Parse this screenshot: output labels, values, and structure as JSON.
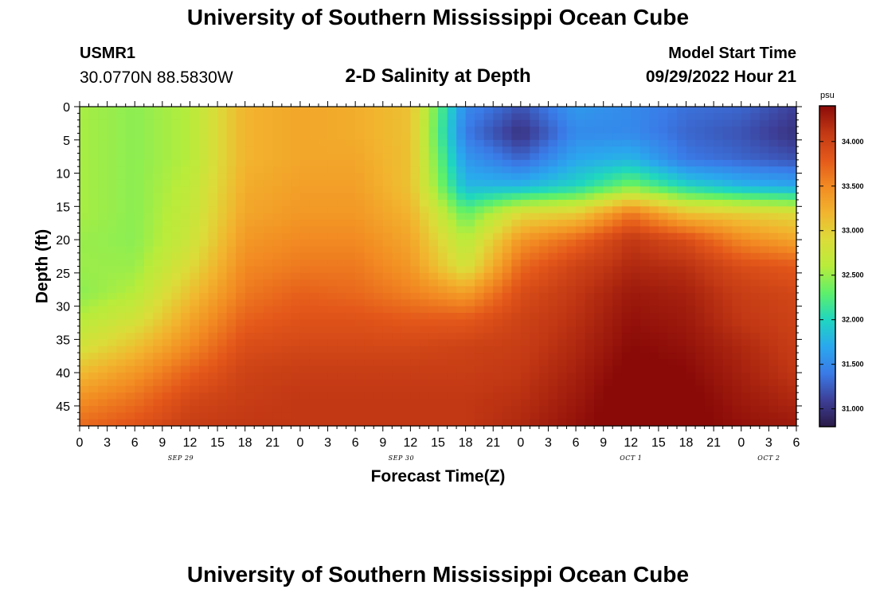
{
  "header": {
    "title": "University of Southern Mississippi Ocean Cube",
    "station_id": "USMR1",
    "coordinates": "30.0770N  88.5830W",
    "subtitle": "2-D Salinity at Depth",
    "model_start_label": "Model Start Time",
    "model_start_value": "09/29/2022 Hour 21"
  },
  "footer": {
    "title": "University of Southern Mississippi Ocean Cube"
  },
  "colors": {
    "scale": [
      "#2a1a46",
      "#3d3f98",
      "#3a7be8",
      "#2aa8ee",
      "#1fd6c0",
      "#5ef06a",
      "#b8ec3b",
      "#dcdc3a",
      "#f2b42e",
      "#f28a22",
      "#e4581a",
      "#c23814",
      "#8a0a08"
    ]
  },
  "chart_data": {
    "type": "heatmap",
    "title": "2-D Salinity at Depth",
    "xlabel": "Forecast Time(Z)",
    "ylabel": "Depth (ft)",
    "x_range": [
      0,
      78
    ],
    "x_unit": "hours from 09/29 00Z",
    "x_tick_labels": [
      "0",
      "3",
      "6",
      "9",
      "12",
      "15",
      "18",
      "21",
      "0",
      "3",
      "6",
      "9",
      "12",
      "15",
      "18",
      "21",
      "0",
      "3",
      "6",
      "9",
      "12",
      "15",
      "18",
      "21",
      "0",
      "3",
      "6"
    ],
    "date_labels": [
      {
        "label": "SEP 29",
        "hour": 11
      },
      {
        "label": "SEP 30",
        "hour": 35
      },
      {
        "label": "OCT 1",
        "hour": 60
      },
      {
        "label": "OCT 2",
        "hour": 75
      }
    ],
    "y_range": [
      0,
      48
    ],
    "y_ticks": [
      0,
      5,
      10,
      15,
      20,
      25,
      30,
      35,
      40,
      45
    ],
    "colorbar": {
      "label": "psu",
      "range": [
        30.8,
        34.4
      ],
      "ticks": [
        "31.000",
        "31.500",
        "32.000",
        "32.500",
        "33.000",
        "33.500",
        "34.000"
      ]
    },
    "depths": [
      0,
      4,
      8,
      12,
      16,
      20,
      24,
      28,
      32,
      36,
      40,
      44,
      48
    ],
    "hours": [
      0,
      6,
      12,
      18,
      24,
      30,
      36,
      42,
      48,
      54,
      60,
      66,
      72,
      78
    ],
    "values": [
      [
        32.55,
        32.45,
        32.6,
        33.2,
        33.3,
        33.25,
        33.1,
        31.5,
        31.2,
        31.6,
        31.5,
        31.35,
        31.3,
        31.1
      ],
      [
        32.55,
        32.45,
        32.6,
        33.2,
        33.3,
        33.25,
        33.1,
        31.4,
        31.0,
        31.5,
        31.5,
        31.3,
        31.2,
        31.0
      ],
      [
        32.55,
        32.45,
        32.6,
        33.2,
        33.3,
        33.3,
        33.1,
        31.6,
        31.3,
        31.7,
        31.8,
        31.4,
        31.3,
        31.2
      ],
      [
        32.55,
        32.45,
        32.65,
        33.25,
        33.35,
        33.35,
        33.1,
        31.8,
        31.8,
        32.0,
        32.4,
        32.0,
        31.8,
        31.7
      ],
      [
        32.55,
        32.45,
        32.7,
        33.3,
        33.4,
        33.4,
        33.2,
        32.3,
        32.9,
        33.0,
        33.6,
        33.1,
        33.0,
        32.9
      ],
      [
        32.5,
        32.45,
        32.75,
        33.4,
        33.5,
        33.5,
        33.3,
        32.6,
        33.4,
        33.7,
        34.1,
        33.9,
        33.5,
        33.3
      ],
      [
        32.5,
        32.5,
        32.9,
        33.5,
        33.6,
        33.6,
        33.4,
        32.8,
        33.7,
        34.0,
        34.2,
        34.15,
        33.9,
        33.8
      ],
      [
        32.45,
        32.6,
        33.1,
        33.6,
        33.75,
        33.7,
        33.55,
        33.35,
        33.9,
        34.1,
        34.3,
        34.25,
        34.05,
        33.95
      ],
      [
        32.6,
        32.8,
        33.3,
        33.75,
        33.85,
        33.85,
        33.8,
        33.8,
        34.0,
        34.15,
        34.35,
        34.3,
        34.1,
        34.0
      ],
      [
        32.8,
        33.1,
        33.5,
        33.9,
        33.95,
        33.95,
        33.95,
        34.0,
        34.05,
        34.2,
        34.4,
        34.35,
        34.2,
        34.05
      ],
      [
        33.15,
        33.4,
        33.75,
        34.0,
        34.05,
        34.05,
        34.05,
        34.05,
        34.1,
        34.25,
        34.45,
        34.4,
        34.25,
        34.1
      ],
      [
        33.45,
        33.65,
        33.95,
        34.05,
        34.1,
        34.1,
        34.1,
        34.1,
        34.15,
        34.3,
        34.5,
        34.45,
        34.3,
        34.2
      ],
      [
        33.7,
        33.85,
        34.05,
        34.1,
        34.1,
        34.1,
        34.1,
        34.1,
        34.2,
        34.35,
        34.5,
        34.45,
        34.35,
        34.3
      ]
    ]
  }
}
